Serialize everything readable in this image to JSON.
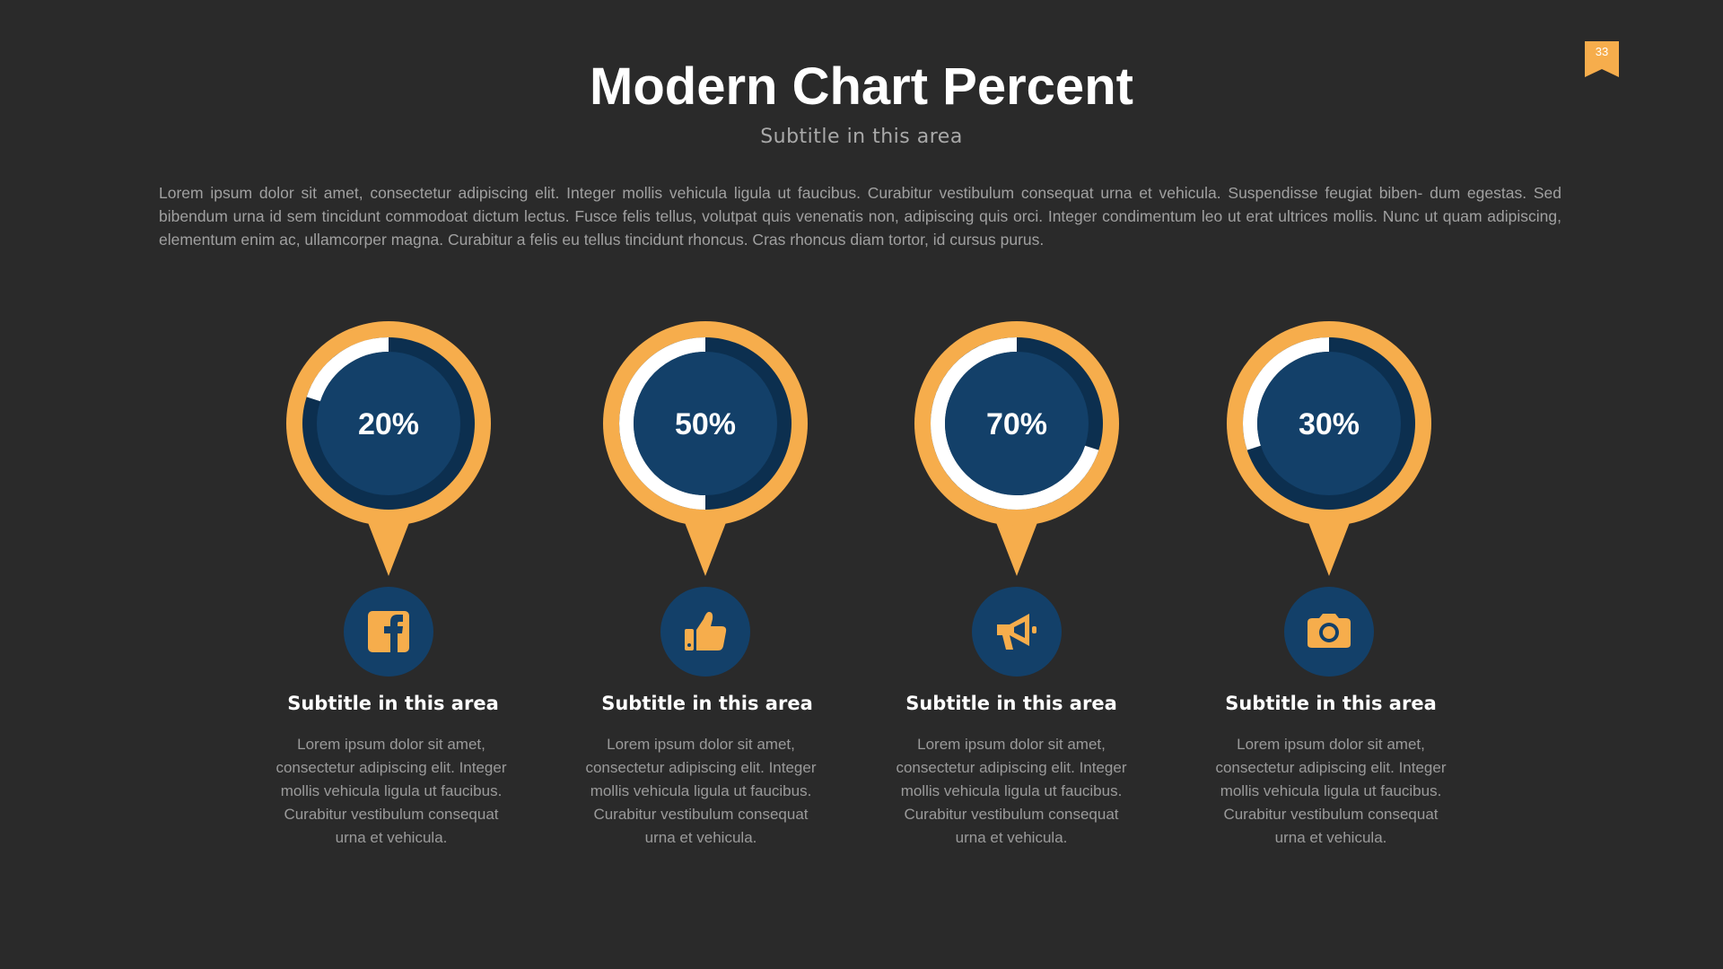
{
  "slide": {
    "title": "Modern Chart Percent",
    "subtitle": "Subtitle in this area",
    "page_number": "33",
    "intro": "Lorem ipsum dolor sit amet, consectetur adipiscing elit. Integer mollis vehicula ligula ut faucibus. Curabitur vestibulum consequat urna et vehicula. Suspendisse feugiat biben- dum egestas. Sed bibendum urna id sem tincidunt commodoat dictum lectus. Fusce felis tellus, volutpat quis venenatis non, adipiscing quis orci. Integer condimentum leo ut erat ultrices mollis. Nunc ut quam adipiscing, elementum enim ac, ullamcorper magna. Curabitur a felis eu tellus tincidunt rhoncus. Cras rhoncus diam tortor, id cursus purus."
  },
  "colors": {
    "background": "#2a2a2a",
    "accent": "#f6ad4c",
    "navy": "#134069",
    "navy_dark": "#0c2f4f",
    "progress": "#ffffff"
  },
  "chart_data": {
    "type": "donut",
    "title": "",
    "values": [
      20,
      50,
      70,
      30
    ],
    "labels": [
      "20%",
      "50%",
      "70%",
      "30%"
    ],
    "icons": [
      "facebook-icon",
      "thumbs-up-icon",
      "megaphone-icon",
      "camera-icon"
    ]
  },
  "items": [
    {
      "title": "Subtitle in this area",
      "description": "Lorem ipsum dolor sit amet, consectetur adipiscing elit. Integer mollis vehicula ligula ut faucibus. Curabitur vestibulum consequat urna et vehicula."
    },
    {
      "title": "Subtitle in this area",
      "description": "Lorem ipsum dolor sit amet, consectetur adipiscing elit. Integer mollis vehicula ligula ut faucibus. Curabitur vestibulum consequat urna et vehicula."
    },
    {
      "title": "Subtitle in this area",
      "description": "Lorem ipsum dolor sit amet, consectetur adipiscing elit. Integer mollis vehicula ligula ut faucibus. Curabitur vestibulum consequat urna et vehicula."
    },
    {
      "title": "Subtitle in this area",
      "description": "Lorem ipsum dolor sit amet, consectetur adipiscing elit. Integer mollis vehicula ligula ut faucibus. Curabitur vestibulum consequat urna et vehicula."
    }
  ]
}
